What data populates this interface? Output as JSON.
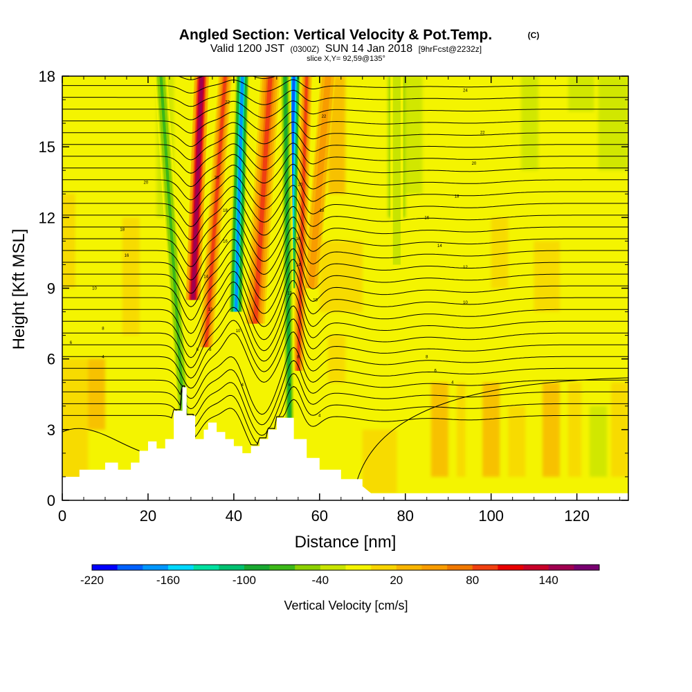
{
  "chart_data": {
    "type": "heatmap",
    "title": "Angled Section: Vertical Velocity & Pot.Temp.",
    "title_mark": "(C)",
    "subtitle_parts": [
      "Valid 1200 JST",
      "(0300Z)",
      "SUN 14 Jan 2018",
      "[9hrFcst@2232z]"
    ],
    "slice_label": "slice X,Y= 92,59@135°",
    "xlabel": "Distance [nm]",
    "ylabel": "Height [Kft MSL]",
    "xlim": [
      0,
      132
    ],
    "ylim": [
      0,
      18
    ],
    "x_ticks": [
      "0",
      "20",
      "40",
      "60",
      "80",
      "100",
      "120"
    ],
    "y_ticks": [
      "0",
      "3",
      "6",
      "9",
      "12",
      "15",
      "18"
    ],
    "grid": false,
    "colorbar": {
      "label": "Vertical Velocity [cm/s]",
      "tick_labels": [
        "-220",
        "-160",
        "-100",
        "-40",
        "20",
        "80",
        "140"
      ],
      "levels": [
        -220,
        -200,
        -180,
        -160,
        -140,
        -120,
        -100,
        -80,
        -60,
        -40,
        -20,
        0,
        20,
        40,
        60,
        80,
        100,
        120,
        140,
        160,
        180
      ],
      "colors": [
        "#0000ff",
        "#0060ff",
        "#0096ff",
        "#00d8ff",
        "#00e0a0",
        "#00c070",
        "#18a830",
        "#3cb818",
        "#8cd000",
        "#c8e400",
        "#f4f400",
        "#f8d400",
        "#f8b400",
        "#f89c00",
        "#f07800",
        "#f04010",
        "#e80000",
        "#c80028",
        "#a00050",
        "#780070"
      ]
    },
    "terrain_profile": {
      "x": [
        0,
        4,
        4,
        10,
        10,
        13,
        13,
        16,
        16,
        18,
        18,
        20,
        20,
        22,
        22,
        24,
        24,
        26,
        26,
        28,
        28,
        29,
        29,
        31,
        31,
        33,
        33,
        34,
        34,
        36,
        36,
        38,
        38,
        40,
        40,
        42,
        42,
        44,
        44,
        46,
        46,
        48,
        48,
        50,
        50,
        54,
        54,
        57,
        57,
        60,
        60,
        65,
        65,
        70,
        70,
        72,
        132
      ],
      "y": [
        1.0,
        1.0,
        1.3,
        1.3,
        1.6,
        1.6,
        1.3,
        1.3,
        1.6,
        1.6,
        2.1,
        2.1,
        2.5,
        2.5,
        2.2,
        2.2,
        2.6,
        2.6,
        3.8,
        3.8,
        4.8,
        4.8,
        3.6,
        3.6,
        2.6,
        2.6,
        3.0,
        3.0,
        3.3,
        3.3,
        2.9,
        2.9,
        2.6,
        2.6,
        2.3,
        2.3,
        2.0,
        2.0,
        2.3,
        2.3,
        2.6,
        2.6,
        3.0,
        3.0,
        3.5,
        3.5,
        2.6,
        2.6,
        1.8,
        1.8,
        1.3,
        1.3,
        0.9,
        0.9,
        0.6,
        0.3,
        0.3
      ]
    },
    "velocity_features": [
      {
        "label": "updraft",
        "x_base": 30.5,
        "x_top": 32.5,
        "y_base": 8.5,
        "width": 3.4,
        "value": 170
      },
      {
        "label": "updraft",
        "x_base": 33.5,
        "x_top": 38.0,
        "y_base": 6.5,
        "width": 3.2,
        "value": 90
      },
      {
        "label": "downdraft",
        "x_base": 40.5,
        "x_top": 42.0,
        "y_base": 8.0,
        "width": 3.2,
        "value": -180
      },
      {
        "label": "updraft",
        "x_base": 45.0,
        "x_top": 48.5,
        "y_base": 7.5,
        "width": 4.5,
        "value": 100
      },
      {
        "label": "downdraft",
        "x_base": 53.0,
        "x_top": 54.0,
        "y_base": 9.0,
        "width": 3.2,
        "value": -200
      },
      {
        "label": "updraft",
        "x_base": 55.0,
        "x_top": 57.0,
        "y_base": 5.5,
        "width": 2.6,
        "value": 100
      },
      {
        "label": "updraft",
        "x_base": 58.0,
        "x_top": 62.0,
        "y_base": 9.0,
        "width": 3.5,
        "value": 60
      },
      {
        "label": "downdraft",
        "x_base": 28.5,
        "x_top": 23.0,
        "y_base": 3.0,
        "width": 3.0,
        "value": -80
      },
      {
        "label": "downdraft",
        "x_base": 53.0,
        "x_top": 52.0,
        "y_base": 3.5,
        "width": 2.6,
        "value": -100
      },
      {
        "label": "downdraft",
        "x_base": 78.0,
        "x_top": 78.0,
        "y_base": 10.0,
        "width": 3.0,
        "value": -40
      }
    ],
    "contour_labels": [
      {
        "text": "24",
        "x": 94,
        "y": 17.4
      },
      {
        "text": "22",
        "x": 98,
        "y": 15.6
      },
      {
        "text": "20",
        "x": 96,
        "y": 14.3
      },
      {
        "text": "18",
        "x": 92,
        "y": 12.9
      },
      {
        "text": "16",
        "x": 85,
        "y": 12.0
      },
      {
        "text": "14",
        "x": 88,
        "y": 10.8
      },
      {
        "text": "12",
        "x": 94,
        "y": 9.9
      },
      {
        "text": "10",
        "x": 94,
        "y": 8.4
      },
      {
        "text": "8",
        "x": 85,
        "y": 6.1
      },
      {
        "text": "6",
        "x": 87,
        "y": 5.5
      },
      {
        "text": "4",
        "x": 91,
        "y": 5.0
      },
      {
        "text": "20",
        "x": 19.5,
        "y": 13.5
      },
      {
        "text": "18",
        "x": 14,
        "y": 11.5
      },
      {
        "text": "16",
        "x": 15,
        "y": 10.4
      },
      {
        "text": "10",
        "x": 7.5,
        "y": 9.0
      },
      {
        "text": "8",
        "x": 9.5,
        "y": 7.3
      },
      {
        "text": "6",
        "x": 2,
        "y": 6.7
      },
      {
        "text": "4",
        "x": 9.5,
        "y": 6.1
      },
      {
        "text": "22",
        "x": 38.5,
        "y": 16.9
      },
      {
        "text": "20",
        "x": 36,
        "y": 13.7
      },
      {
        "text": "18",
        "x": 38,
        "y": 12.3
      },
      {
        "text": "16",
        "x": 38,
        "y": 11.0
      },
      {
        "text": "14",
        "x": 33.5,
        "y": 9.5
      },
      {
        "text": "12",
        "x": 34.5,
        "y": 8.1
      },
      {
        "text": "10",
        "x": 41,
        "y": 7.2
      },
      {
        "text": "8",
        "x": 34.5,
        "y": 6.4
      },
      {
        "text": "8",
        "x": 31.5,
        "y": 6.4
      },
      {
        "text": "4",
        "x": 42,
        "y": 4.9
      },
      {
        "text": "22",
        "x": 61,
        "y": 16.3
      },
      {
        "text": "20",
        "x": 55.5,
        "y": 13.4
      },
      {
        "text": "18",
        "x": 60.5,
        "y": 12.3
      },
      {
        "text": "16",
        "x": 55,
        "y": 11.1
      },
      {
        "text": "14",
        "x": 55,
        "y": 10.0
      },
      {
        "text": "12",
        "x": 53,
        "y": 8.8
      },
      {
        "text": "10",
        "x": 59,
        "y": 8.5
      },
      {
        "text": "8",
        "x": 55,
        "y": 6.1
      },
      {
        "text": "6",
        "x": 53,
        "y": 4.9
      },
      {
        "text": "4",
        "x": 60,
        "y": 3.6
      }
    ]
  }
}
